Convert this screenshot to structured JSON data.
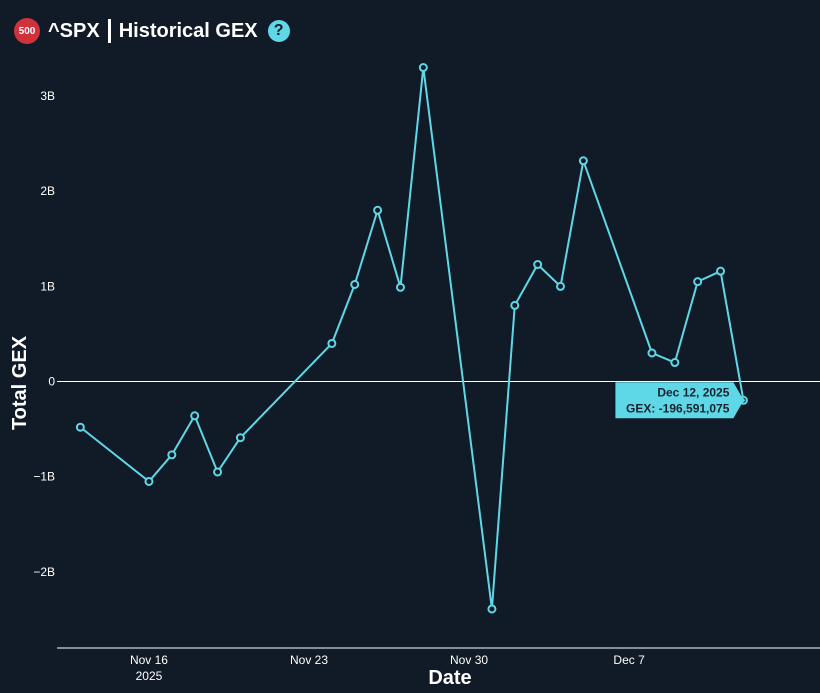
{
  "header": {
    "badge": "500",
    "ticker": "^SPX",
    "title": "Historical GEX",
    "help_icon": "?"
  },
  "colors": {
    "background": "#111a27",
    "series": "#5ed8e6",
    "badge": "#d0323c",
    "axis": "#ffffff"
  },
  "chart_data": {
    "type": "line",
    "xlabel": "Date",
    "ylabel": "Total GEX",
    "ylim": [
      -2.8,
      3.4
    ],
    "xlim": [
      "2025-11-12",
      "2025-12-15"
    ],
    "y_ticks": [
      {
        "value": 3,
        "label": "3B"
      },
      {
        "value": 2,
        "label": "2B"
      },
      {
        "value": 1,
        "label": "1B"
      },
      {
        "value": 0,
        "label": "0"
      },
      {
        "value": -1,
        "label": "−1B"
      },
      {
        "value": -2,
        "label": "−2B"
      }
    ],
    "x_ticks": [
      {
        "date": "2025-11-16",
        "label": "Nov 16",
        "sublabel": "2025"
      },
      {
        "date": "2025-11-23",
        "label": "Nov 23",
        "sublabel": ""
      },
      {
        "date": "2025-11-30",
        "label": "Nov 30",
        "sublabel": ""
      },
      {
        "date": "2025-12-07",
        "label": "Dec 7",
        "sublabel": ""
      }
    ],
    "grid": false,
    "zero_line": true,
    "series": [
      {
        "points": [
          {
            "x": "2025-11-13",
            "y": -0.48
          },
          {
            "x": "2025-11-16",
            "y": -1.05
          },
          {
            "x": "2025-11-17",
            "y": -0.77
          },
          {
            "x": "2025-11-18",
            "y": -0.36
          },
          {
            "x": "2025-11-19",
            "y": -0.95
          },
          {
            "x": "2025-11-20",
            "y": -0.59
          },
          {
            "x": "2025-11-24",
            "y": 0.4
          },
          {
            "x": "2025-11-25",
            "y": 1.02
          },
          {
            "x": "2025-11-26",
            "y": 1.8
          },
          {
            "x": "2025-11-27",
            "y": 0.99
          },
          {
            "x": "2025-11-28",
            "y": 3.3
          },
          {
            "x": "2025-12-01",
            "y": -2.39
          },
          {
            "x": "2025-12-02",
            "y": 0.8
          },
          {
            "x": "2025-12-03",
            "y": 1.23
          },
          {
            "x": "2025-12-04",
            "y": 1.0
          },
          {
            "x": "2025-12-05",
            "y": 2.32
          },
          {
            "x": "2025-12-08",
            "y": 0.3
          },
          {
            "x": "2025-12-09",
            "y": 0.2
          },
          {
            "x": "2025-12-10",
            "y": 1.05
          },
          {
            "x": "2025-12-11",
            "y": 1.16
          },
          {
            "x": "2025-12-12",
            "y": -0.196591075
          }
        ]
      }
    ],
    "tooltip": {
      "point_index": 20,
      "date": "Dec 12, 2025",
      "value_text": "GEX: -196,591,075"
    }
  }
}
